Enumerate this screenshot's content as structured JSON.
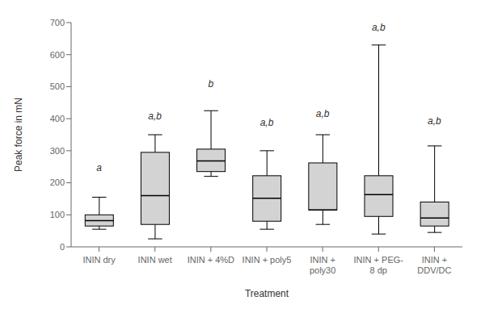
{
  "chart_data": {
    "type": "box",
    "categories": [
      "ININ dry",
      "ININ wet",
      "ININ + 4%D",
      "ININ + poly5",
      "ININ +\npoly30",
      "ININ + PEG-\n8 dp",
      "ININ +\nDDV/DC"
    ],
    "boxes": [
      {
        "whislo": 55,
        "q1": 65,
        "med": 82,
        "q3": 100,
        "whishi": 155
      },
      {
        "whislo": 25,
        "q1": 70,
        "med": 160,
        "q3": 295,
        "whishi": 350
      },
      {
        "whislo": 220,
        "q1": 235,
        "med": 268,
        "q3": 305,
        "whishi": 425
      },
      {
        "whislo": 55,
        "q1": 80,
        "med": 152,
        "q3": 222,
        "whishi": 300
      },
      {
        "whislo": 70,
        "q1": 115,
        "med": 115,
        "q3": 262,
        "whishi": 350
      },
      {
        "whislo": 40,
        "q1": 95,
        "med": 163,
        "q3": 222,
        "whishi": 630
      },
      {
        "whislo": 45,
        "q1": 65,
        "med": 90,
        "q3": 140,
        "whishi": 315
      }
    ],
    "annotations": [
      {
        "label": "a",
        "x": 1,
        "y": 228
      },
      {
        "label": "a,b",
        "x": 2,
        "y": 390
      },
      {
        "label": "b",
        "x": 3,
        "y": 490
      },
      {
        "label": "a,b",
        "x": 4,
        "y": 370
      },
      {
        "label": "a,b",
        "x": 5,
        "y": 398
      },
      {
        "label": "a,b",
        "x": 6,
        "y": 668
      },
      {
        "label": "a,b",
        "x": 7,
        "y": 375
      }
    ],
    "xlabel": "Treatment",
    "ylabel": "Peak force in mN",
    "ylim": [
      0,
      700
    ],
    "yticks": [
      0,
      100,
      200,
      300,
      400,
      500,
      600,
      700
    ],
    "color": "#d3d3d3",
    "grid": false
  }
}
